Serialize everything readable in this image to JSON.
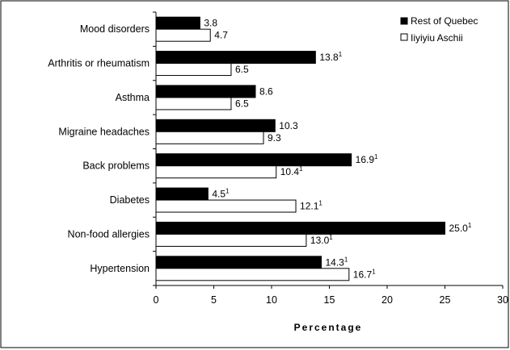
{
  "chart_data": {
    "type": "bar",
    "orientation": "horizontal",
    "categories": [
      "Mood disorders",
      "Arthritis or rheumatism",
      "Asthma",
      "Migraine headaches",
      "Back problems",
      "Diabetes",
      "Non-food allergies",
      "Hypertension"
    ],
    "series": [
      {
        "name": "Rest of Quebec",
        "color": "#000000",
        "values": [
          3.8,
          13.8,
          8.6,
          10.3,
          16.9,
          4.5,
          25.0,
          14.3
        ],
        "labels": [
          "3.8",
          "13.8",
          "8.6",
          "10.3",
          "16.9",
          "4.5",
          "25.0",
          "14.3"
        ],
        "footnotes": [
          "",
          "1",
          "",
          "",
          "1",
          "1",
          "1",
          "1"
        ]
      },
      {
        "name": "Iiyiyiu Aschii",
        "color": "#ffffff",
        "values": [
          4.7,
          6.5,
          6.5,
          9.3,
          10.4,
          12.1,
          13.0,
          16.7
        ],
        "labels": [
          "4.7",
          "6.5",
          "6.5",
          "9.3",
          "10.4",
          "12.1",
          "13.0",
          "16.7"
        ],
        "footnotes": [
          "",
          "",
          "",
          "",
          "1",
          "1",
          "1",
          "1"
        ]
      }
    ],
    "xlabel": "Percentage",
    "xlim": [
      0,
      30
    ],
    "xticks": [
      "0",
      "5",
      "10",
      "15",
      "20",
      "25",
      "30"
    ],
    "grid": false,
    "legend_position": "top-right"
  }
}
